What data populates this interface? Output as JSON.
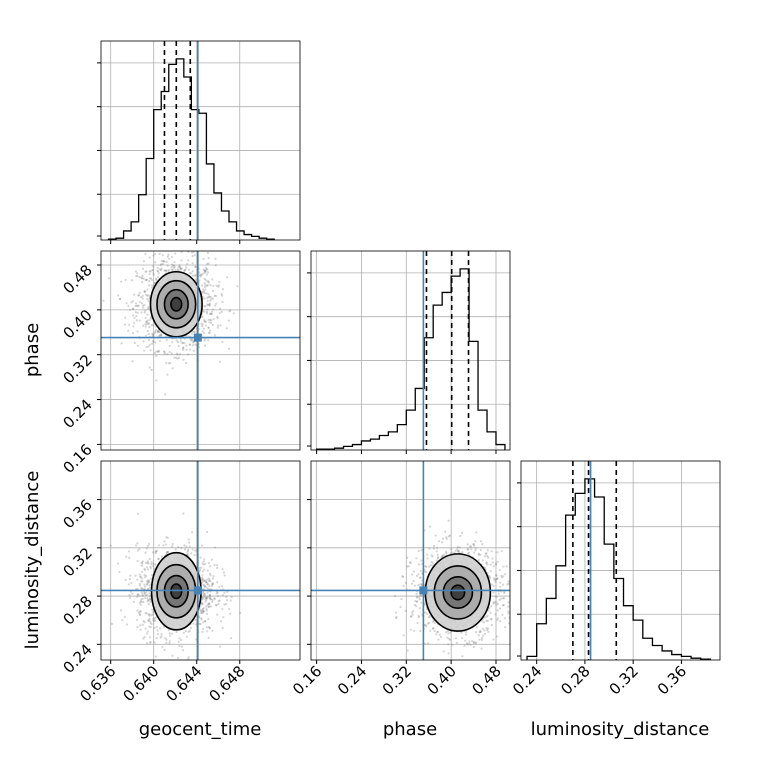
{
  "chart_data": {
    "type": "corner",
    "parameters": [
      "geocent_time",
      "phase",
      "luminosity_distance"
    ],
    "truths": {
      "geocent_time": 0.6441,
      "phase": 0.3505,
      "luminosity_distance": 0.2847
    },
    "truth_color": "#4682b4",
    "hist_color": "#000000",
    "ranges": {
      "geocent_time": [
        0.6351,
        0.6536
      ],
      "phase": [
        0.15,
        0.505
      ],
      "luminosity_distance": [
        0.227,
        0.392
      ]
    },
    "ticks": {
      "geocent_time": [
        "0.636",
        "0.640",
        "0.644",
        "0.648"
      ],
      "phase": [
        "0.16",
        "0.24",
        "0.32",
        "0.40",
        "0.48"
      ],
      "luminosity_distance": [
        "0.24",
        "0.28",
        "0.32",
        "0.36"
      ]
    },
    "tick_values": {
      "geocent_time": [
        0.636,
        0.64,
        0.644,
        0.648
      ],
      "phase": [
        0.16,
        0.24,
        0.32,
        0.4,
        0.48
      ],
      "luminosity_distance": [
        0.24,
        0.28,
        0.32,
        0.36
      ]
    },
    "histograms": {
      "geocent_time": {
        "bins": [
          0.6358,
          0.6365,
          0.6372,
          0.6379,
          0.6386,
          0.6393,
          0.64,
          0.6407,
          0.6414,
          0.6421,
          0.6428,
          0.6435,
          0.6442,
          0.6449,
          0.6456,
          0.6463,
          0.647,
          0.6477,
          0.6484,
          0.6491,
          0.6498,
          0.6505,
          0.6512
        ],
        "values": [
          0.005,
          0.01,
          0.05,
          0.1,
          0.25,
          0.45,
          0.72,
          0.82,
          0.97,
          1.0,
          0.9,
          0.72,
          0.7,
          0.42,
          0.26,
          0.16,
          0.1,
          0.05,
          0.03,
          0.02,
          0.01,
          0.005
        ]
      },
      "phase": {
        "bins": [
          0.16,
          0.176,
          0.192,
          0.208,
          0.224,
          0.24,
          0.256,
          0.272,
          0.288,
          0.304,
          0.32,
          0.336,
          0.352,
          0.368,
          0.384,
          0.4,
          0.416,
          0.432,
          0.448,
          0.464,
          0.48,
          0.496
        ],
        "values": [
          0.005,
          0.005,
          0.01,
          0.02,
          0.03,
          0.05,
          0.06,
          0.08,
          0.1,
          0.14,
          0.22,
          0.34,
          0.62,
          0.8,
          0.87,
          0.96,
          1.0,
          0.6,
          0.22,
          0.1,
          0.03
        ]
      },
      "luminosity_distance": {
        "bins": [
          0.232,
          0.24,
          0.248,
          0.256,
          0.264,
          0.272,
          0.28,
          0.288,
          0.296,
          0.304,
          0.312,
          0.32,
          0.328,
          0.336,
          0.344,
          0.352,
          0.36,
          0.368,
          0.376,
          0.384
        ],
        "values": [
          0.02,
          0.2,
          0.34,
          0.52,
          0.8,
          0.92,
          1.0,
          0.9,
          0.64,
          0.45,
          0.3,
          0.22,
          0.12,
          0.08,
          0.05,
          0.03,
          0.02,
          0.01,
          0.005
        ]
      }
    },
    "quantiles": {
      "geocent_time": [
        0.641,
        0.6421,
        0.6434
      ],
      "phase": [
        0.356,
        0.401,
        0.431
      ],
      "luminosity_distance": [
        0.27,
        0.283,
        0.306
      ]
    },
    "contour_panels": [
      {
        "x": "geocent_time",
        "y": "phase",
        "center": [
          0.6421,
          0.41
        ],
        "levels_half_widths": [
          [
            0.0005,
            0.012
          ],
          [
            0.0011,
            0.026
          ],
          [
            0.0018,
            0.042
          ],
          [
            0.0024,
            0.058
          ]
        ],
        "spread": [
          0.0018,
          0.04
        ]
      },
      {
        "x": "geocent_time",
        "y": "luminosity_distance",
        "center": [
          0.6421,
          0.284
        ],
        "levels_half_widths": [
          [
            0.0005,
            0.006
          ],
          [
            0.0011,
            0.013
          ],
          [
            0.0018,
            0.022
          ],
          [
            0.0023,
            0.032
          ]
        ],
        "spread": [
          0.0018,
          0.018
        ]
      },
      {
        "x": "phase",
        "y": "luminosity_distance",
        "center": [
          0.412,
          0.283
        ],
        "levels_half_widths": [
          [
            0.012,
            0.006
          ],
          [
            0.026,
            0.013
          ],
          [
            0.042,
            0.022
          ],
          [
            0.058,
            0.032
          ]
        ],
        "spread": [
          0.04,
          0.018
        ]
      }
    ],
    "grid": true
  }
}
